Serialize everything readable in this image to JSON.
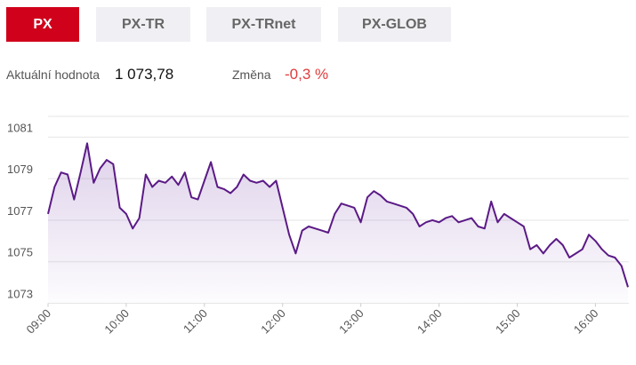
{
  "tabs": [
    "PX",
    "PX-TR",
    "PX-TRnet",
    "PX-GLOB"
  ],
  "active_tab": 0,
  "info": {
    "value_label": "Aktuální hodnota",
    "value": "1 073,78",
    "change_label": "Změna",
    "change": "-0,3 %"
  },
  "chart_data": {
    "type": "line",
    "color": "#5b1a86",
    "grid": true,
    "x": [
      "09:00",
      "09:05",
      "09:10",
      "09:15",
      "09:20",
      "09:25",
      "09:30",
      "09:35",
      "09:40",
      "09:45",
      "09:50",
      "09:55",
      "10:00",
      "10:05",
      "10:10",
      "10:15",
      "10:20",
      "10:25",
      "10:30",
      "10:35",
      "10:40",
      "10:45",
      "10:50",
      "10:55",
      "11:00",
      "11:05",
      "11:10",
      "11:15",
      "11:20",
      "11:25",
      "11:30",
      "11:35",
      "11:40",
      "11:45",
      "11:50",
      "11:55",
      "12:00",
      "12:05",
      "12:10",
      "12:15",
      "12:20",
      "12:25",
      "12:30",
      "12:35",
      "12:40",
      "12:45",
      "12:50",
      "12:55",
      "13:00",
      "13:05",
      "13:10",
      "13:15",
      "13:20",
      "13:25",
      "13:30",
      "13:35",
      "13:40",
      "13:45",
      "13:50",
      "13:55",
      "14:00",
      "14:05",
      "14:10",
      "14:15",
      "14:20",
      "14:25",
      "14:30",
      "14:35",
      "14:40",
      "14:45",
      "14:50",
      "14:55",
      "15:00",
      "15:05",
      "15:10",
      "15:15",
      "15:20",
      "15:25",
      "15:30",
      "15:35",
      "15:40",
      "15:45",
      "15:50",
      "15:55",
      "16:00",
      "16:05",
      "16:10",
      "16:15",
      "16:20",
      "16:25"
    ],
    "values": [
      1077.3,
      1078.6,
      1079.3,
      1079.2,
      1078.0,
      1079.3,
      1080.7,
      1078.8,
      1079.5,
      1079.9,
      1079.7,
      1077.6,
      1077.3,
      1076.6,
      1077.1,
      1079.2,
      1078.6,
      1078.9,
      1078.8,
      1079.1,
      1078.7,
      1079.3,
      1078.1,
      1078.0,
      1078.9,
      1079.8,
      1078.6,
      1078.5,
      1078.3,
      1078.6,
      1079.2,
      1078.9,
      1078.8,
      1078.9,
      1078.6,
      1078.9,
      1077.6,
      1076.3,
      1075.4,
      1076.5,
      1076.7,
      1076.6,
      1076.5,
      1076.4,
      1077.3,
      1077.8,
      1077.7,
      1077.6,
      1076.9,
      1078.1,
      1078.4,
      1078.2,
      1077.9,
      1077.8,
      1077.7,
      1077.6,
      1077.3,
      1076.7,
      1076.9,
      1077.0,
      1076.9,
      1077.1,
      1077.2,
      1076.9,
      1077.0,
      1077.1,
      1076.7,
      1076.6,
      1077.9,
      1076.9,
      1077.3,
      1077.1,
      1076.9,
      1076.7,
      1075.6,
      1075.8,
      1075.4,
      1075.8,
      1076.1,
      1075.8,
      1075.2,
      1075.4,
      1075.6,
      1076.3,
      1076.0,
      1075.6,
      1075.3,
      1075.2,
      1074.8,
      1073.78
    ],
    "xlim": [
      "09:00",
      "16:25"
    ],
    "xticks": [
      "09:00",
      "10:00",
      "11:00",
      "12:00",
      "13:00",
      "14:00",
      "15:00",
      "16:00"
    ],
    "ylim": [
      1073,
      1082
    ],
    "yticks": [
      1073,
      1075,
      1077,
      1079,
      1081
    ]
  }
}
